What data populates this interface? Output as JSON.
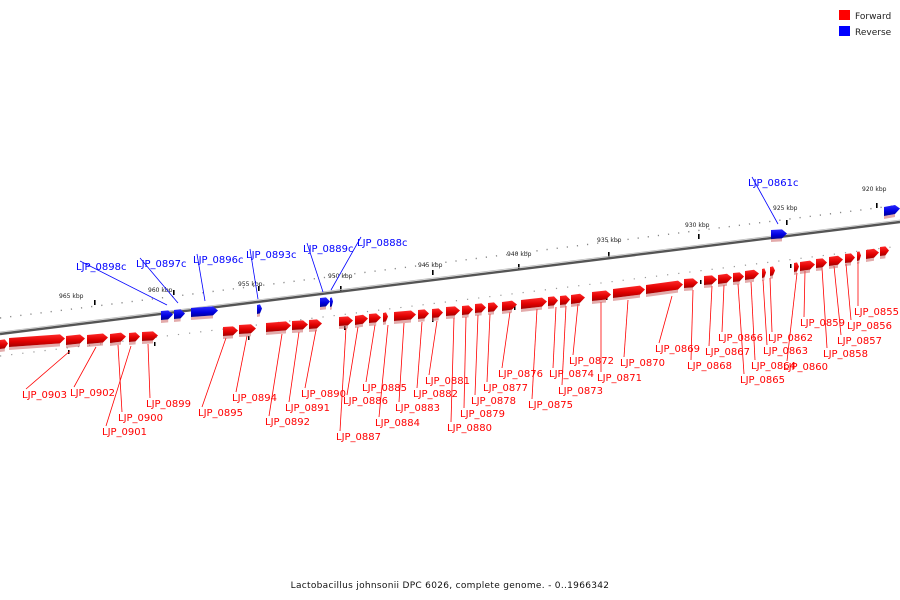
{
  "legend": {
    "items": [
      {
        "label": "Forward",
        "color": "#ff0000"
      },
      {
        "label": "Reverse",
        "color": "#0000ff"
      }
    ]
  },
  "caption": "Lactobacillus johnsonii DPC 6026, complete genome. - 0..1966342",
  "colors": {
    "forward": "#ff0000",
    "forward_dark": "#b00000",
    "reverse": "#0000ff",
    "reverse_dark": "#000099",
    "backbone": "#555555"
  },
  "scale_ticks": [
    "965 kbp",
    "960 kbp",
    "955 kbp",
    "950 kbp",
    "945 kbp",
    "940 kbp",
    "935 kbp",
    "930 kbp",
    "925 kbp",
    "920 kbp"
  ],
  "reverse_genes": [
    "LJP_0898c",
    "LJP_0897c",
    "LJP_0896c",
    "LJP_0893c",
    "LJP_0889c",
    "LJP_0888c",
    "LJP_0861c"
  ],
  "forward_genes": [
    "LJP_0903",
    "LJP_0902",
    "LJP_0901",
    "LJP_0900",
    "LJP_0899",
    "LJP_0895",
    "LJP_0894",
    "LJP_0892",
    "LJP_0891",
    "LJP_0890",
    "LJP_0887",
    "LJP_0886",
    "LJP_0885",
    "LJP_0884",
    "LJP_0883",
    "LJP_0882",
    "LJP_0881",
    "LJP_0880",
    "LJP_0879",
    "LJP_0878",
    "LJP_0877",
    "LJP_0876",
    "LJP_0875",
    "LJP_0874",
    "LJP_0873",
    "LJP_0872",
    "LJP_0871",
    "LJP_0870",
    "LJP_0869",
    "LJP_0868",
    "LJP_0867",
    "LJP_0866",
    "LJP_0865",
    "LJP_0864",
    "LJP_0863",
    "LJP_0862",
    "LJP_0860",
    "LJP_0859",
    "LJP_0858",
    "LJP_0857",
    "LJP_0856",
    "LJP_0855"
  ]
}
